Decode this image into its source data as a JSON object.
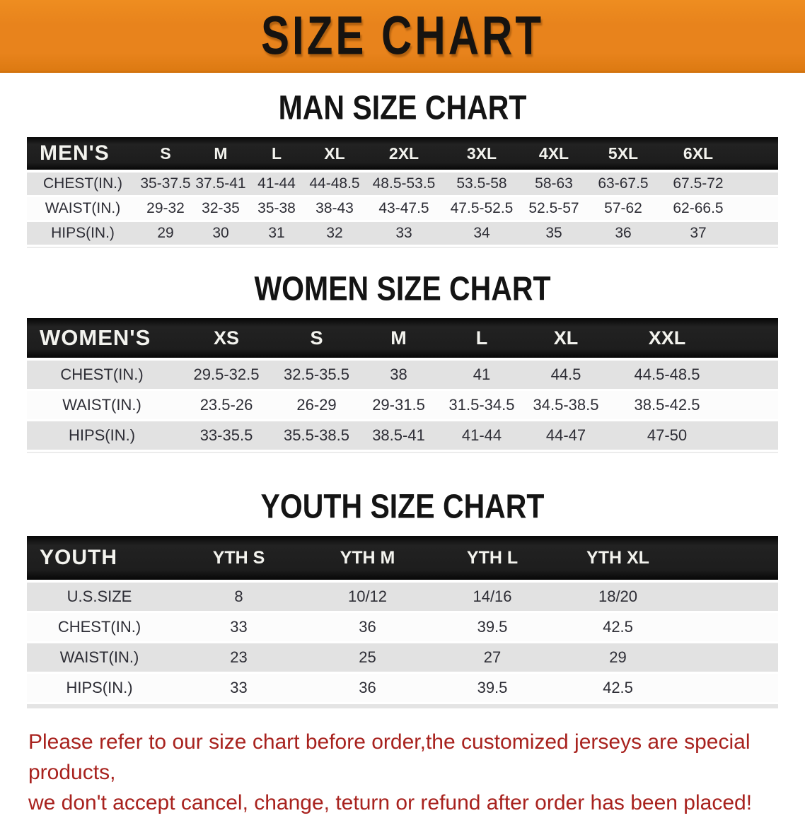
{
  "banner": {
    "title": "SIZE CHART",
    "bg_color": "#e8831c",
    "text_color": "#161310"
  },
  "sections": [
    {
      "id": "men",
      "heading": "MAN SIZE CHART",
      "corner_label": "MEN'S",
      "columns": [
        "S",
        "M",
        "L",
        "XL",
        "2XL",
        "3XL",
        "4XL",
        "5XL",
        "6XL"
      ],
      "rows": [
        {
          "label": "CHEST(IN.)",
          "values": [
            "35-37.5",
            "37.5-41",
            "41-44",
            "44-48.5",
            "48.5-53.5",
            "53.5-58",
            "58-63",
            "63-67.5",
            "67.5-72"
          ]
        },
        {
          "label": "WAIST(IN.)",
          "values": [
            "29-32",
            "32-35",
            "35-38",
            "38-43",
            "43-47.5",
            "47.5-52.5",
            "52.5-57",
            "57-62",
            "62-66.5"
          ]
        },
        {
          "label": "HIPS(IN.)",
          "values": [
            "29",
            "30",
            "31",
            "32",
            "33",
            "34",
            "35",
            "36",
            "37"
          ]
        }
      ]
    },
    {
      "id": "women",
      "heading": "WOMEN SIZE CHART",
      "corner_label": "WOMEN'S",
      "columns": [
        "XS",
        "S",
        "M",
        "L",
        "XL",
        "XXL"
      ],
      "rows": [
        {
          "label": "CHEST(IN.)",
          "values": [
            "29.5-32.5",
            "32.5-35.5",
            "38",
            "41",
            "44.5",
            "44.5-48.5"
          ]
        },
        {
          "label": "WAIST(IN.)",
          "values": [
            "23.5-26",
            "26-29",
            "29-31.5",
            "31.5-34.5",
            "34.5-38.5",
            "38.5-42.5"
          ]
        },
        {
          "label": "HIPS(IN.)",
          "values": [
            "33-35.5",
            "35.5-38.5",
            "38.5-41",
            "41-44",
            "44-47",
            "47-50"
          ]
        }
      ]
    },
    {
      "id": "youth",
      "heading": "YOUTH SIZE CHART",
      "corner_label": "YOUTH",
      "columns": [
        "YTH S",
        "YTH M",
        "YTH L",
        "YTH XL"
      ],
      "rows": [
        {
          "label": "U.S.SIZE",
          "values": [
            "8",
            "10/12",
            "14/16",
            "18/20"
          ]
        },
        {
          "label": "CHEST(IN.)",
          "values": [
            "33",
            "36",
            "39.5",
            "42.5"
          ]
        },
        {
          "label": "WAIST(IN.)",
          "values": [
            "23",
            "25",
            "27",
            "29"
          ]
        },
        {
          "label": "HIPS(IN.)",
          "values": [
            "33",
            "36",
            "39.5",
            "42.5"
          ]
        }
      ]
    }
  ],
  "footer": {
    "line1": "Please refer to our size chart before order,the customized jerseys are special products,",
    "line2": "we don't accept cancel, change, teturn or refund after order has been placed!",
    "text_color": "#a8221e"
  }
}
